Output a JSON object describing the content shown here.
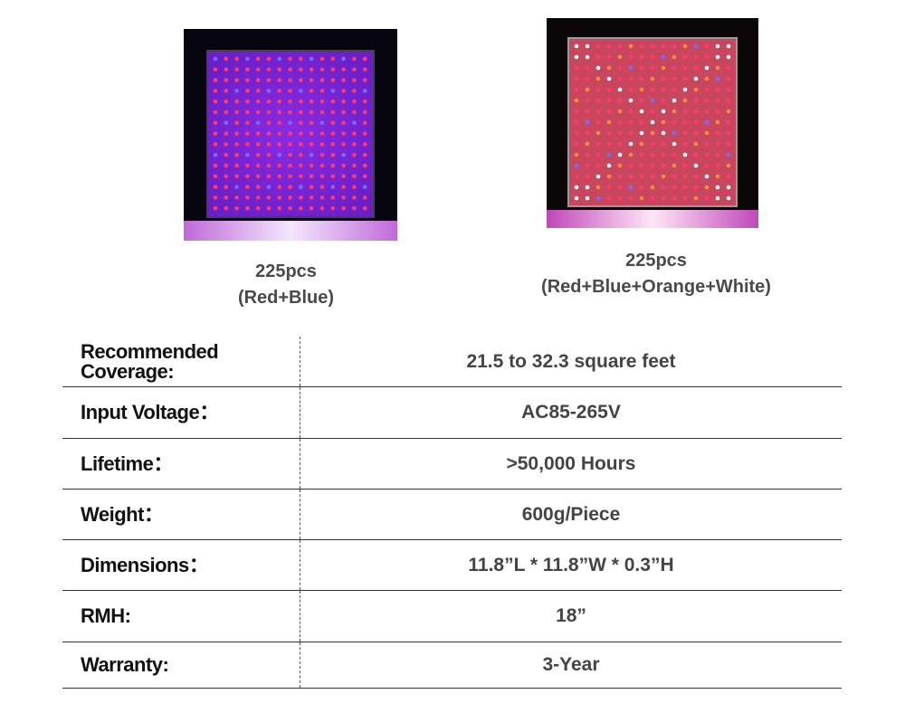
{
  "products": [
    {
      "count": "225pcs",
      "leds": "(Red+Blue)",
      "image": "red-blue-led-panel"
    },
    {
      "count": "225pcs",
      "leds": "(Red+Blue+Orange+White)",
      "image": "full-spectrum-led-panel"
    }
  ],
  "colors": {
    "red": "#ff3b6b",
    "blue": "#7a6bff",
    "orange": "#ff8a3a",
    "white": "#ffffff",
    "panel_purple": "#7a1fd0"
  },
  "specs": [
    {
      "label_line1": "Recommended",
      "label_line2": "Coverage:",
      "value": "21.5 to 32.3 square feet"
    },
    {
      "label": "Input Voltage：",
      "value": "AC85-265V"
    },
    {
      "label": "Lifetime：",
      "value": ">50,000 Hours"
    },
    {
      "label": "Weight：",
      "value": "600g/Piece"
    },
    {
      "label": "Dimensions：",
      "value": "11.8”L * 11.8”W * 0.3”H"
    },
    {
      "label": "RMH:",
      "value": "18”"
    },
    {
      "label": "Warranty:",
      "value": "3-Year"
    }
  ]
}
